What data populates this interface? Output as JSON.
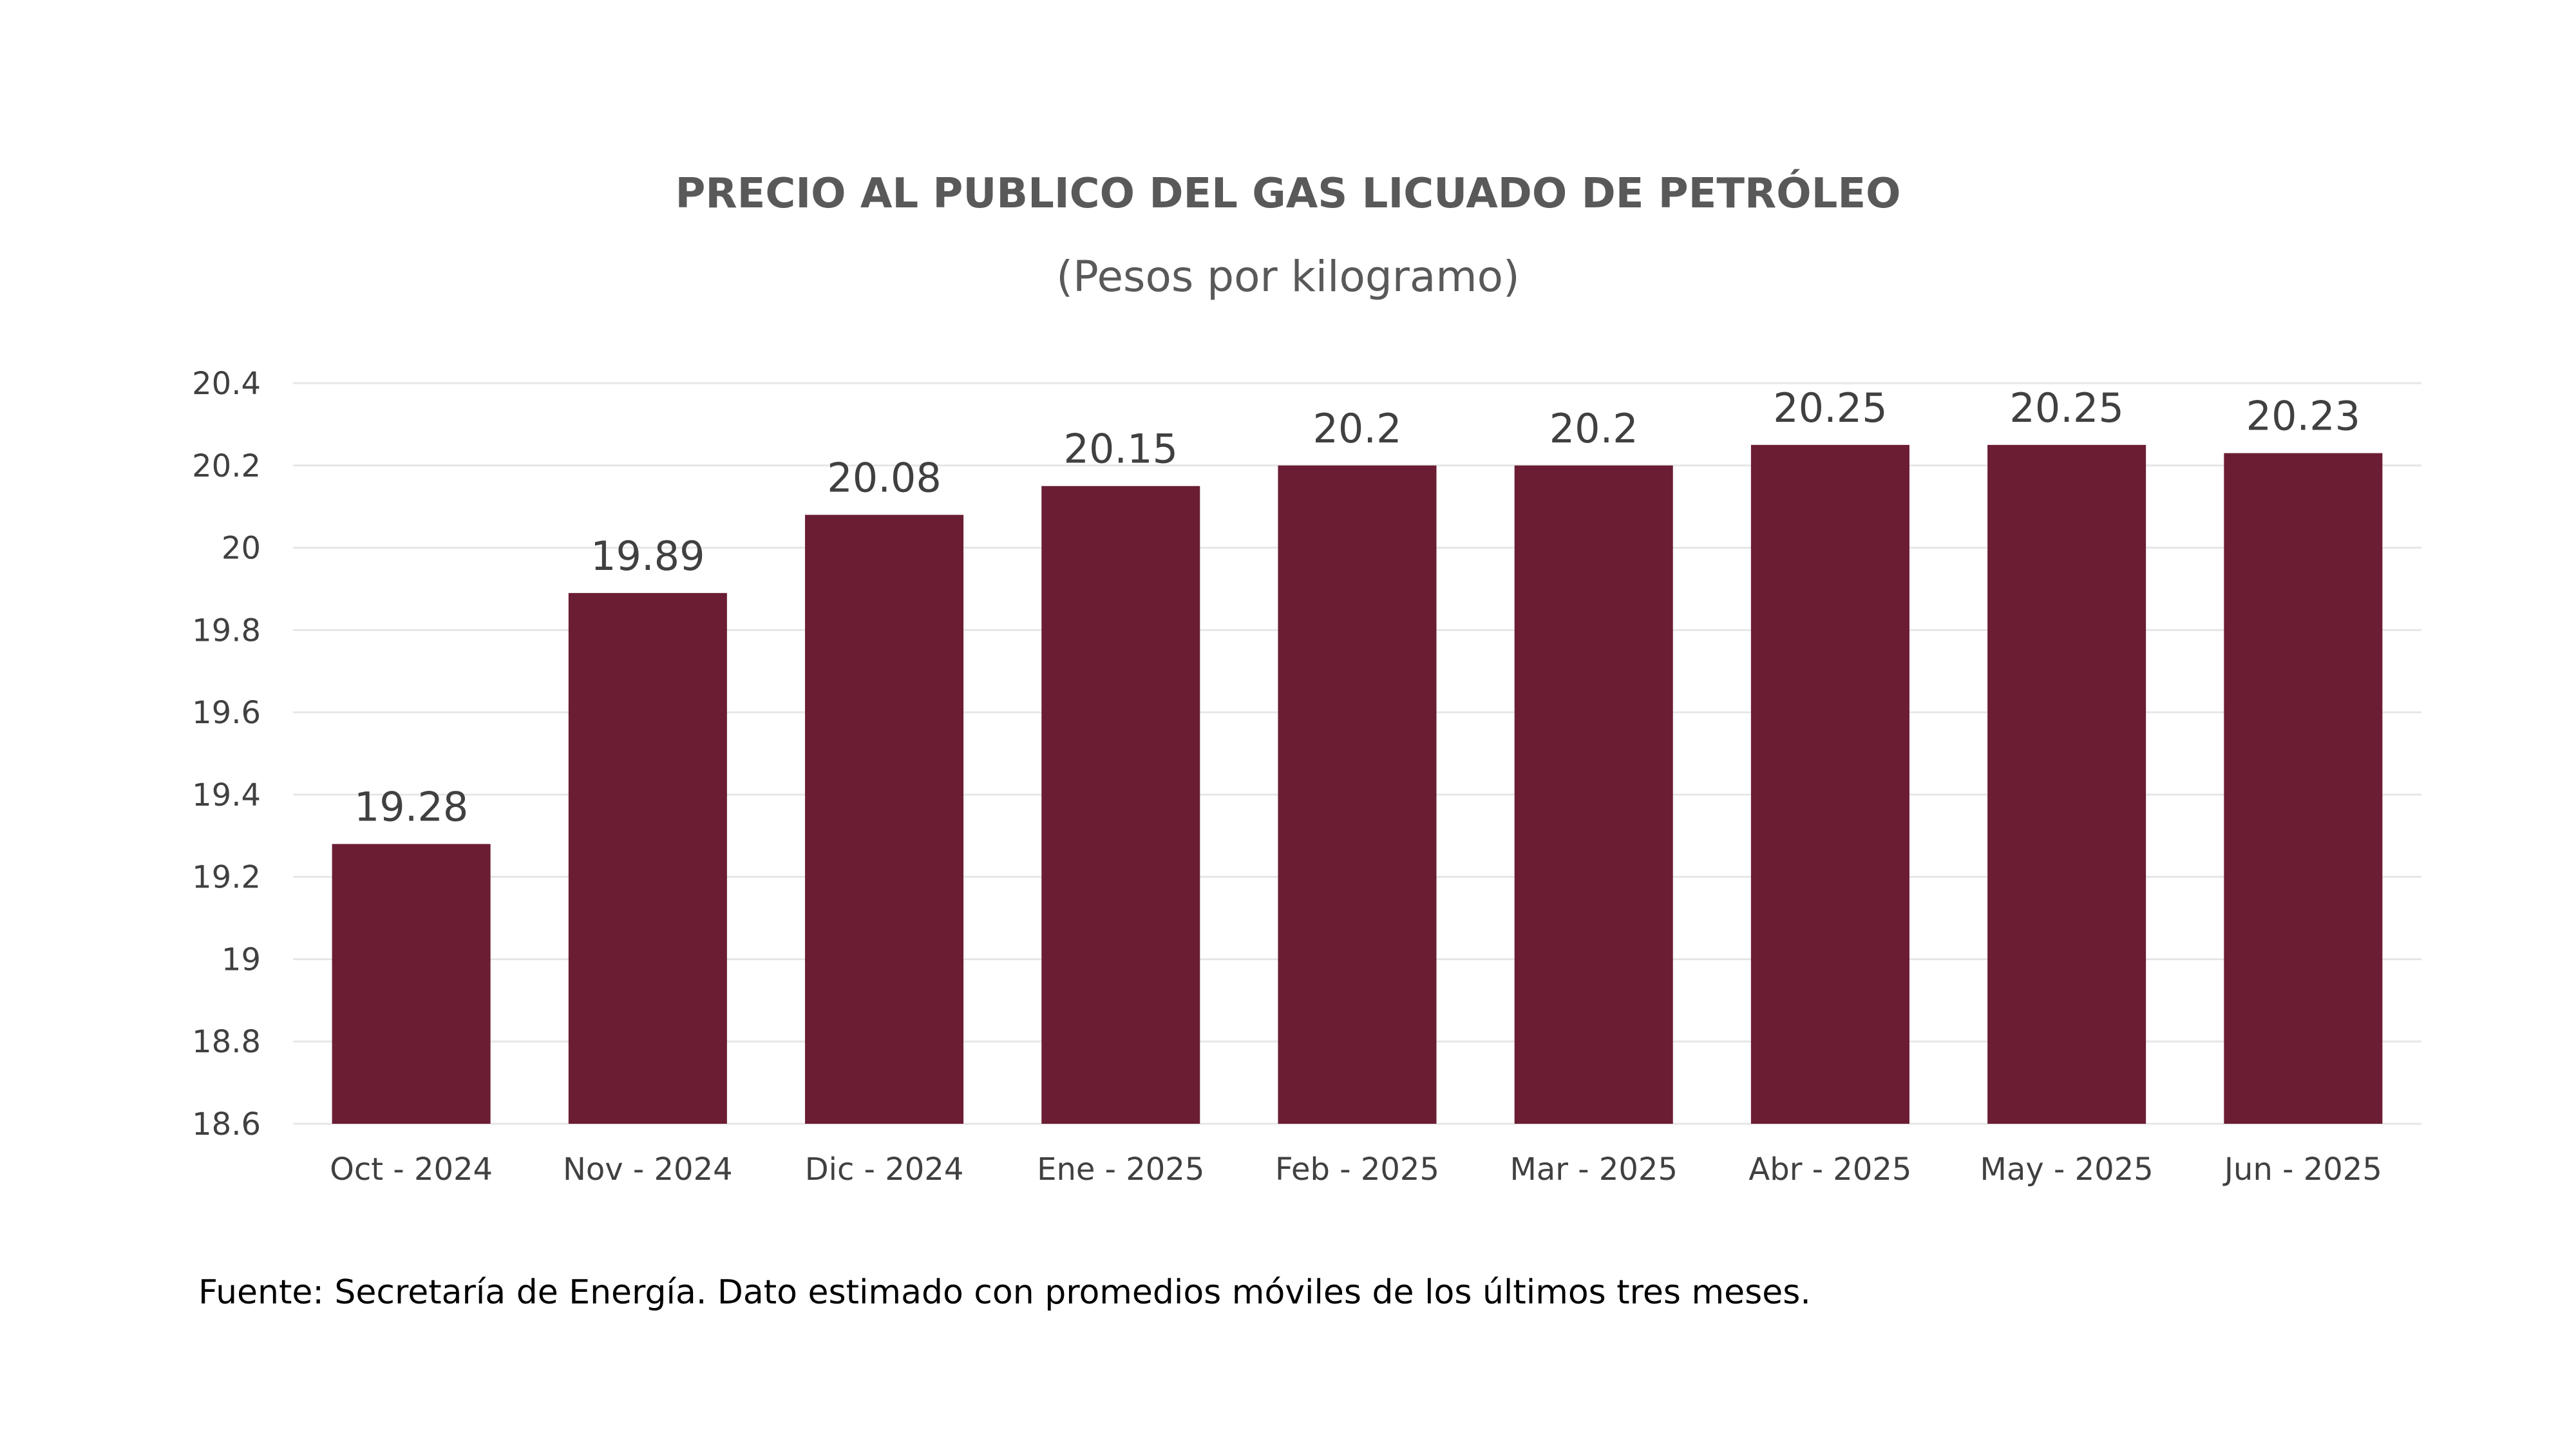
{
  "chart_data": {
    "type": "bar",
    "title": "PRECIO AL PUBLICO DEL GAS LICUADO DE PETRÓLEO",
    "subtitle": "(Pesos por kilogramo)",
    "categories": [
      "Oct - 2024",
      "Nov - 2024",
      "Dic - 2024",
      "Ene - 2025",
      "Feb - 2025",
      "Mar - 2025",
      "Abr - 2025",
      "May - 2025",
      "Jun - 2025"
    ],
    "values": [
      19.28,
      19.89,
      20.08,
      20.15,
      20.2,
      20.2,
      20.25,
      20.25,
      20.23
    ],
    "data_labels": [
      "19.28",
      "19.89",
      "20.08",
      "20.15",
      "20.2",
      "20.2",
      "20.25",
      "20.25",
      "20.23"
    ],
    "yticks": [
      18.6,
      18.8,
      19,
      19.2,
      19.4,
      19.6,
      19.8,
      20,
      20.2,
      20.4
    ],
    "ytick_labels": [
      "18.6",
      "18.8",
      "19",
      "19.2",
      "19.4",
      "19.6",
      "19.8",
      "20",
      "20.2",
      "20.4"
    ],
    "ylim": [
      18.6,
      20.4
    ],
    "grid": true,
    "legend": "none",
    "bar_color": "#6b1d33",
    "xlabel": "",
    "ylabel": ""
  },
  "source_note": "Fuente: Secretaría de Energía. Dato estimado con promedios móviles de los últimos tres meses."
}
